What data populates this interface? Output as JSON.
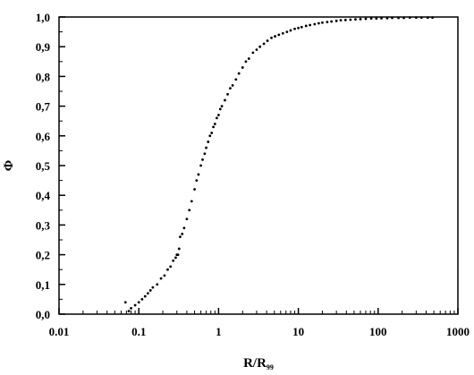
{
  "chart_data": {
    "type": "scatter",
    "title": "",
    "xlabel": "R/R",
    "xlabel_subscript": "99",
    "ylabel": "Φ",
    "xscale": "log",
    "xlim": [
      0.01,
      1000
    ],
    "ylim": [
      0.0,
      1.0
    ],
    "grid": false,
    "legend": "none",
    "x_ticks": [
      0.01,
      0.1,
      1,
      10,
      100,
      1000
    ],
    "x_tick_labels": [
      "0.01",
      "0.1",
      "1",
      "10",
      "100",
      "1000"
    ],
    "y_ticks": [
      0.0,
      0.1,
      0.2,
      0.3,
      0.4,
      0.5,
      0.6,
      0.7,
      0.8,
      0.9,
      1.0
    ],
    "y_tick_labels": [
      "0,0",
      "0,1",
      "0,2",
      "0,3",
      "0,4",
      "0,5",
      "0,6",
      "0,7",
      "0,8",
      "0,9",
      "1,0"
    ],
    "marker_color": "#000000",
    "series": [
      {
        "x": [
          0.068,
          0.075,
          0.08,
          0.09,
          0.1,
          0.11,
          0.12,
          0.13,
          0.14,
          0.15,
          0.17,
          0.19,
          0.21,
          0.23,
          0.25,
          0.27,
          0.29,
          0.3,
          0.31,
          0.32,
          0.33,
          0.35,
          0.37,
          0.4,
          0.43,
          0.46,
          0.5,
          0.53,
          0.56,
          0.6,
          0.63,
          0.67,
          0.7,
          0.74,
          0.78,
          0.82,
          0.86,
          0.9,
          0.95,
          1.0,
          1.05,
          1.1,
          1.2,
          1.3,
          1.4,
          1.5,
          1.65,
          1.8,
          2.0,
          2.2,
          2.4,
          2.7,
          3.0,
          3.3,
          3.7,
          4.1,
          4.6,
          5.1,
          5.7,
          6.4,
          7.2,
          8.0,
          9.0,
          10,
          11,
          12.5,
          14,
          16,
          18,
          20,
          23,
          26,
          30,
          34,
          39,
          45,
          52,
          60,
          70,
          82,
          95,
          110,
          130,
          150,
          180,
          210,
          250,
          300,
          350,
          420,
          480
        ],
        "y": [
          0.04,
          0.01,
          0.02,
          0.03,
          0.04,
          0.05,
          0.06,
          0.07,
          0.08,
          0.09,
          0.1,
          0.12,
          0.13,
          0.15,
          0.16,
          0.18,
          0.19,
          0.2,
          0.2,
          0.22,
          0.26,
          0.27,
          0.29,
          0.32,
          0.35,
          0.38,
          0.42,
          0.45,
          0.47,
          0.5,
          0.52,
          0.54,
          0.56,
          0.58,
          0.6,
          0.61,
          0.63,
          0.64,
          0.66,
          0.67,
          0.69,
          0.7,
          0.72,
          0.74,
          0.76,
          0.77,
          0.79,
          0.81,
          0.83,
          0.85,
          0.86,
          0.88,
          0.89,
          0.9,
          0.91,
          0.92,
          0.93,
          0.935,
          0.94,
          0.945,
          0.95,
          0.955,
          0.96,
          0.963,
          0.966,
          0.97,
          0.973,
          0.976,
          0.979,
          0.981,
          0.983,
          0.985,
          0.987,
          0.989,
          0.99,
          0.991,
          0.992,
          0.993,
          0.994,
          0.995,
          0.995,
          0.996,
          0.996,
          0.997,
          0.997,
          0.997,
          0.998,
          0.998,
          0.998,
          0.998,
          0.998
        ]
      }
    ]
  }
}
